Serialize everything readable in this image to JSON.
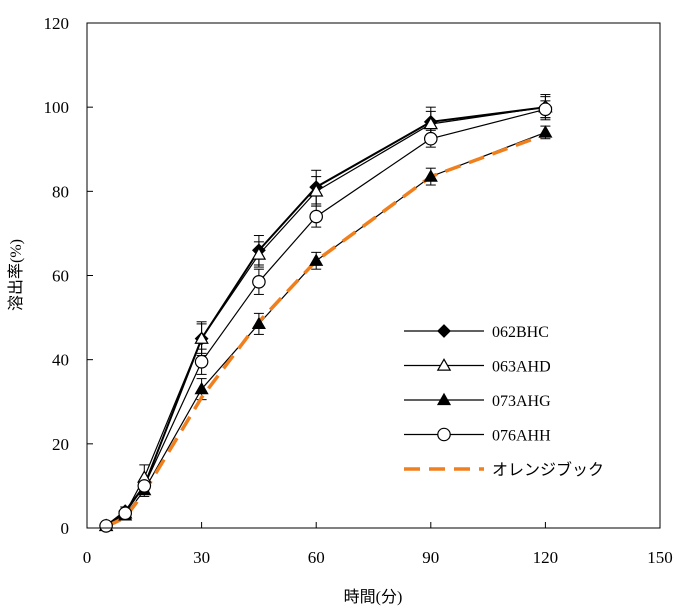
{
  "chart_data": {
    "type": "line",
    "title": "",
    "xlabel": "時間(分)",
    "ylabel": "溶出率(%)",
    "xlim": [
      0,
      150
    ],
    "ylim": [
      0,
      120
    ],
    "xticks": [
      0,
      30,
      60,
      90,
      120,
      150
    ],
    "yticks": [
      0,
      20,
      40,
      60,
      80,
      100,
      120
    ],
    "grid": false,
    "legend_position": "center-right",
    "x": [
      5,
      10,
      15,
      30,
      45,
      60,
      90,
      120
    ],
    "series": [
      {
        "name": "062BHC",
        "marker": "diamond-filled",
        "line_style": "solid",
        "line_color": "#000000",
        "values": [
          0.5,
          4,
          10,
          45,
          66,
          81,
          96.5,
          100
        ],
        "error": [
          0.5,
          1,
          1.5,
          4,
          3.5,
          4,
          3.5,
          3
        ]
      },
      {
        "name": "063AHD",
        "marker": "triangle-open",
        "line_style": "solid",
        "line_color": "#000000",
        "values": [
          0.5,
          3.5,
          12,
          45,
          65,
          80,
          96,
          100
        ],
        "error": [
          0.5,
          1,
          3,
          3.5,
          3,
          3.5,
          3,
          2.5
        ]
      },
      {
        "name": "073AHG",
        "marker": "triangle-filled",
        "line_style": "solid",
        "line_color": "#000000",
        "values": [
          0.5,
          3,
          9,
          33,
          48.5,
          63.5,
          83.5,
          94
        ],
        "error": [
          0.5,
          1,
          1.5,
          2.5,
          2.5,
          2,
          2,
          1.5
        ]
      },
      {
        "name": "076AHH",
        "marker": "circle-open",
        "line_style": "solid",
        "line_color": "#000000",
        "values": [
          0.5,
          3.5,
          10,
          39.5,
          58.5,
          74,
          92.5,
          99.5
        ],
        "error": [
          0.5,
          1,
          1.5,
          3,
          3,
          2.5,
          2,
          2
        ]
      },
      {
        "name": "オレンジブック",
        "marker": "none",
        "line_style": "dashed",
        "line_color": "#f07f1e",
        "values": [
          0.3,
          2.5,
          8.5,
          31,
          49,
          63.5,
          83.5,
          93.5
        ],
        "error": []
      }
    ]
  }
}
